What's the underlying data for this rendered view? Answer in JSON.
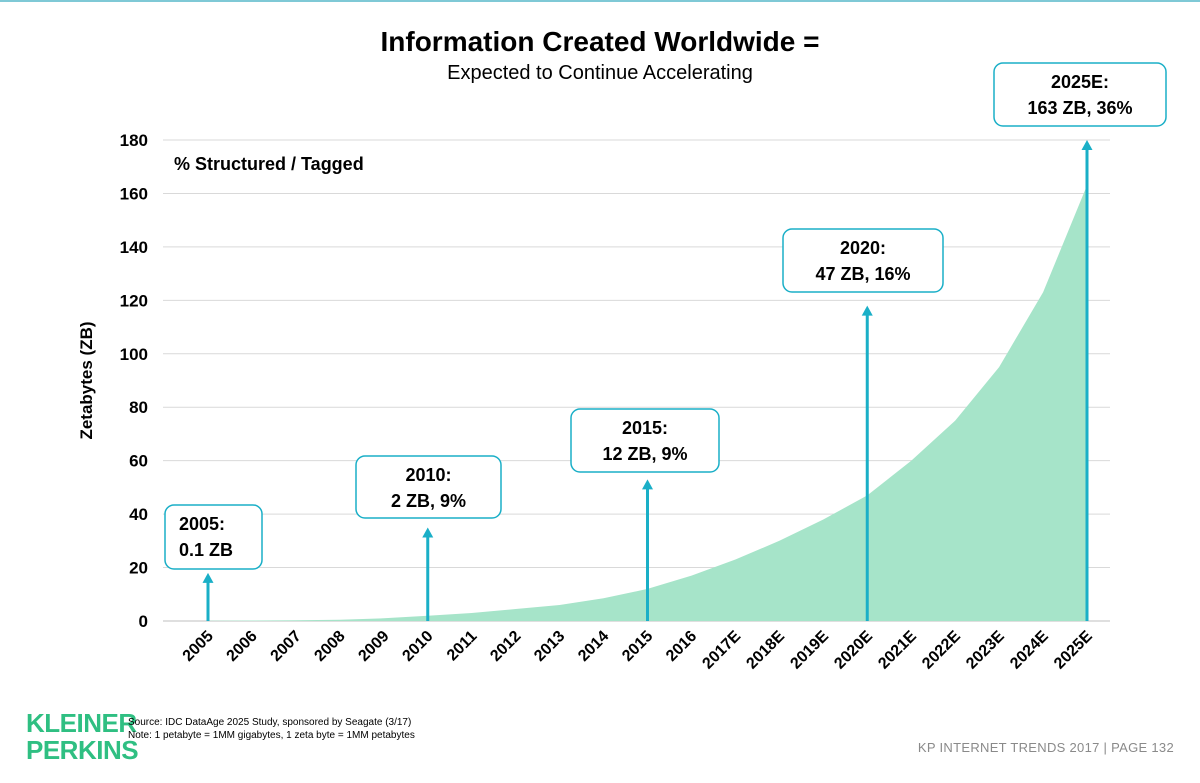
{
  "header": {
    "title": "Information Created Worldwide =",
    "subtitle": "Expected to Continue Accelerating"
  },
  "colors": {
    "area": "#a6e4c9",
    "arrow": "#1aafc7",
    "callout_border": "#1aafc7",
    "grid": "#d9d9d9",
    "brand": "#2fbf82"
  },
  "chart_data": {
    "type": "area",
    "title": "Information Created Worldwide =",
    "subtitle": "Expected to Continue Accelerating",
    "xlabel": "",
    "ylabel": "Zetabytes (ZB)",
    "ylim": [
      0,
      180
    ],
    "yticks": [
      0,
      20,
      40,
      60,
      80,
      100,
      120,
      140,
      160,
      180
    ],
    "grid": true,
    "inner_label": "% Structured / Tagged",
    "categories": [
      "2005",
      "2006",
      "2007",
      "2008",
      "2009",
      "2010",
      "2011",
      "2012",
      "2013",
      "2014",
      "2015",
      "2016",
      "2017E",
      "2018E",
      "2019E",
      "2020E",
      "2021E",
      "2022E",
      "2023E",
      "2024E",
      "2025E"
    ],
    "values": [
      0.1,
      0.2,
      0.3,
      0.5,
      1,
      2,
      3,
      4.5,
      6,
      8.5,
      12,
      17,
      23,
      30,
      38,
      47,
      60,
      75,
      95,
      123,
      163
    ],
    "annotations": [
      {
        "year": "2005",
        "line1": "2005:",
        "line2": "0.1 ZB",
        "arrow_top": 18
      },
      {
        "year": "2010",
        "line1": "2010:",
        "line2": "2 ZB, 9%",
        "arrow_top": 35
      },
      {
        "year": "2015",
        "line1": "2015:",
        "line2": "12 ZB, 9%",
        "arrow_top": 53
      },
      {
        "year": "2020E",
        "line1": "2020:",
        "line2": "47 ZB, 16%",
        "arrow_top": 118
      },
      {
        "year": "2025E",
        "line1": "2025E:",
        "line2": "163 ZB, 36%",
        "arrow_top": 180
      }
    ]
  },
  "footer": {
    "logo_line1": "KLEINER",
    "logo_line2": "PERKINS",
    "source": "Source: IDC DataAge 2025 Study, sponsored by Seagate (3/17)",
    "note": "Note: 1 petabyte = 1MM gigabytes, 1 zeta byte = 1MM petabytes",
    "page": "KP INTERNET TRENDS 2017   |   PAGE 132"
  }
}
